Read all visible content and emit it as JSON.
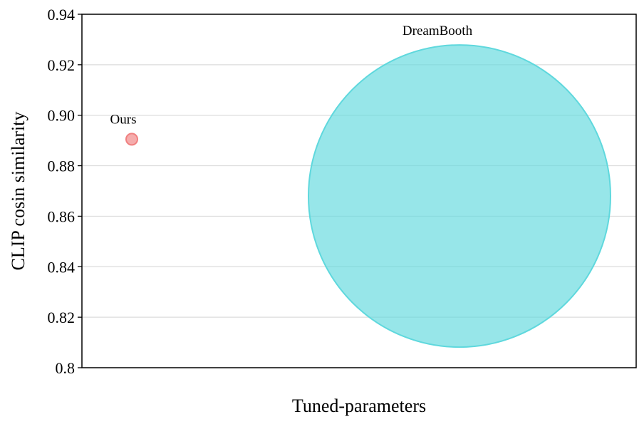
{
  "chart_data": {
    "type": "scatter",
    "title": "",
    "xlabel": "Tuned-parameters",
    "ylabel": "CLIP cosin similarity",
    "ylim": [
      0.8,
      0.94
    ],
    "yticks": [
      "0.8",
      "0.82",
      "0.84",
      "0.86",
      "0.88",
      "0.90",
      "0.92",
      "0.94"
    ],
    "grid": "horizontal",
    "x_ticks_shown": false,
    "points": [
      {
        "label": "Ours",
        "x_position": "left",
        "y": 0.8905,
        "relative_size": "small",
        "color": "#f08080"
      },
      {
        "label": "DreamBooth",
        "x_position": "right",
        "y": 0.868,
        "relative_size": "large",
        "color": "#5fd8dd"
      }
    ]
  }
}
